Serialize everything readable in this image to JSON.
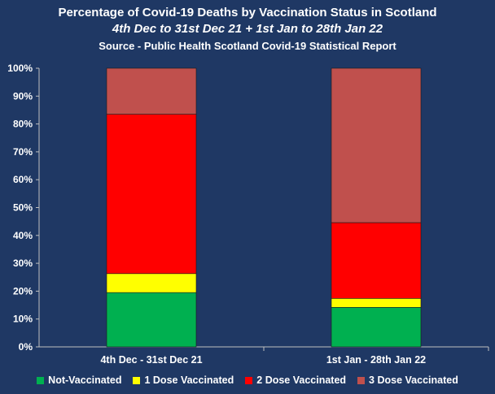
{
  "chart_data": {
    "type": "bar",
    "stacked": true,
    "title": "Percentage of Covid-19 Deaths by Vaccination Status in Scotland",
    "subtitle": "4th Dec to 31st Dec 21 + 1st Jan to 28th Jan 22",
    "source": "Source - Public Health Scotland Covid-19 Statistical Report",
    "categories": [
      "4th Dec - 31st Dec 21",
      "1st Jan - 28th Jan 22"
    ],
    "series": [
      {
        "name": "Not-Vaccinated",
        "color": "#00b050",
        "values": [
          19.5,
          14.2
        ]
      },
      {
        "name": "1 Dose Vaccinated",
        "color": "#ffff00",
        "values": [
          6.8,
          3.2
        ]
      },
      {
        "name": "2 Dose Vaccinated",
        "color": "#ff0000",
        "values": [
          57.2,
          27.2
        ]
      },
      {
        "name": "3 Dose Vaccinated",
        "color": "#c0504d",
        "values": [
          16.5,
          55.4
        ]
      }
    ],
    "ylim": [
      0,
      100
    ],
    "yticks": [
      "0%",
      "10%",
      "20%",
      "30%",
      "40%",
      "50%",
      "60%",
      "70%",
      "80%",
      "90%",
      "100%"
    ],
    "grid": false,
    "legend_position": "bottom"
  }
}
